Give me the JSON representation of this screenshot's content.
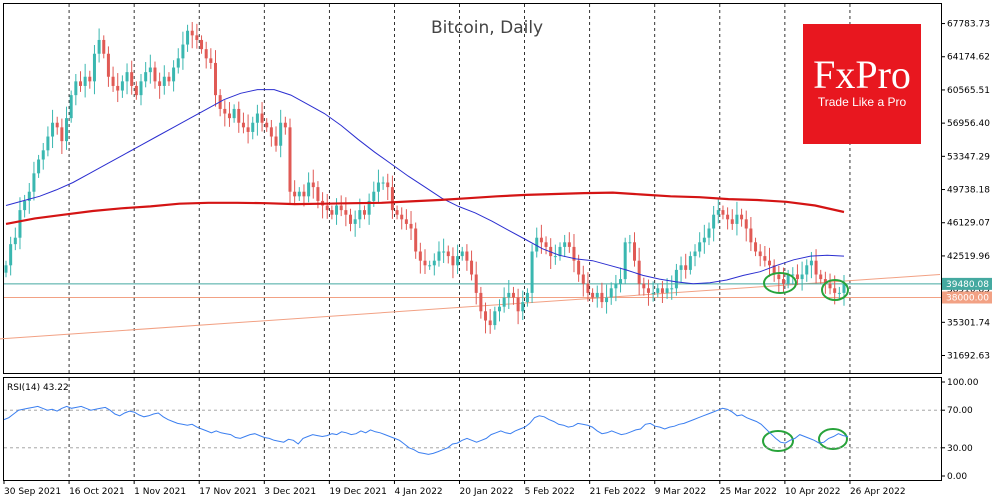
{
  "title": "Bitcoin, Daily",
  "logo": {
    "brand": "FxPro",
    "tagline": "Trade Like a Pro",
    "color": "#e8171f"
  },
  "colors": {
    "bull": "#3ab7b0",
    "bear": "#e05a55",
    "ma_fast": "#2b2ed0",
    "ma_slow": "#d41414",
    "trend": "#f2a184",
    "price_line": "#44a9a0",
    "rsi": "#3b7ff0",
    "ellipse": "#27a33a"
  },
  "chart_data": [
    {
      "type": "candlestick",
      "title": "Bitcoin, Daily",
      "y_ticks": [
        "67783.73",
        "64174.62",
        "60565.51",
        "56956.40",
        "53347.29",
        "49738.18",
        "46129.07",
        "42519.96",
        "38910.85",
        "35301.74",
        "31692.63"
      ],
      "ylim": [
        29900,
        69800
      ],
      "current_price_label": "39480.08",
      "current_price": 39480.08,
      "level_label": "38000.00",
      "level": 38000,
      "x_labels": [
        "30 Sep 2021",
        "16 Oct 2021",
        "1 Nov 2021",
        "17 Nov 2021",
        "3 Dec 2021",
        "19 Dec 2021",
        "4 Jan 2022",
        "20 Jan 2022",
        "5 Feb 2022",
        "21 Feb 2022",
        "9 Mar 2022",
        "25 Mar 2022",
        "10 Apr 2022",
        "26 Apr 2022"
      ],
      "closes": [
        41500,
        43800,
        44500,
        47500,
        48500,
        49500,
        51500,
        53000,
        54000,
        55500,
        57000,
        56500,
        55000,
        57500,
        60000,
        61500,
        61000,
        62000,
        61500,
        64500,
        66000,
        64500,
        62000,
        61000,
        60500,
        61500,
        62500,
        61000,
        60000,
        61500,
        62500,
        63000,
        61500,
        61000,
        62000,
        61500,
        63000,
        64000,
        65500,
        67000,
        66500,
        66000,
        65000,
        64000,
        63500,
        60000,
        58500,
        58000,
        57500,
        58500,
        57000,
        56500,
        56000,
        57000,
        58000,
        57000,
        56500,
        55500,
        54500,
        57000,
        56500,
        49500,
        49000,
        49500,
        49000,
        50500,
        50000,
        48500,
        48000,
        47500,
        47000,
        48000,
        47500,
        47000,
        46000,
        46500,
        47500,
        47000,
        48500,
        49500,
        50500,
        50500,
        50000,
        47500,
        47000,
        46500,
        46000,
        45500,
        43000,
        42000,
        41500,
        41500,
        42000,
        43000,
        43000,
        42500,
        41500,
        42500,
        43000,
        42000,
        40500,
        38500,
        36500,
        35500,
        35000,
        36500,
        37000,
        38000,
        38500,
        38000,
        36500,
        37500,
        38500,
        43000,
        44500,
        44000,
        43500,
        42500,
        42500,
        43500,
        44000,
        43500,
        42000,
        40500,
        39500,
        38500,
        38000,
        38500,
        37500,
        38000,
        39000,
        39500,
        40000,
        44000,
        44000,
        42000,
        39500,
        39000,
        38500,
        38500,
        39000,
        38500,
        39000,
        39000,
        41000,
        41500,
        41000,
        42500,
        43000,
        44000,
        44500,
        45500,
        47000,
        47500,
        47000,
        46500,
        46000,
        47000,
        46500,
        45500,
        44000,
        43000,
        42500,
        42000,
        41500,
        40500,
        40000,
        39500,
        40500,
        40500,
        40000,
        40500,
        41500,
        42000,
        40500,
        40000,
        39500,
        39000,
        38500,
        38500,
        39500
      ],
      "ma_fast": [
        48000,
        48500,
        49000,
        49700,
        50500,
        51500,
        52500,
        53500,
        54500,
        55500,
        56500,
        57500,
        58500,
        59500,
        60200,
        60600,
        60600,
        60000,
        59000,
        58000,
        56700,
        55200,
        53800,
        52500,
        51200,
        50000,
        48800,
        47900,
        47200,
        46300,
        45300,
        44300,
        43300,
        42600,
        42200,
        42000,
        41500,
        41000,
        40400,
        40000,
        39700,
        39500,
        39600,
        39900,
        40400,
        40800,
        41500,
        42100,
        42500,
        42600,
        42500
      ],
      "ma_slow": [
        46000,
        46600,
        47000,
        47400,
        47700,
        47900,
        48200,
        48300,
        48300,
        48250,
        48150,
        48200,
        48250,
        48300,
        48450,
        48600,
        48800,
        49000,
        49150,
        49250,
        49350,
        49400,
        49200,
        49000,
        48900,
        48700,
        48600,
        48400,
        48000,
        47300
      ],
      "trend": [
        [
          0,
          33500
        ],
        [
          940,
          40500
        ]
      ]
    },
    {
      "type": "line",
      "title": "RSI(14) 43.22",
      "y_ticks": [
        "100.00",
        "70.00",
        "30.00",
        "0.00"
      ],
      "ylim": [
        0,
        100
      ],
      "levels": [
        70,
        30
      ],
      "values": [
        60,
        62,
        66,
        70,
        71,
        72,
        73,
        74,
        72,
        70,
        71,
        69,
        72,
        74,
        72,
        73,
        74,
        72,
        70,
        71,
        72,
        73,
        70,
        66,
        64,
        67,
        69,
        68,
        65,
        63,
        64,
        66,
        67,
        63,
        60,
        58,
        56,
        55,
        54,
        55,
        52,
        50,
        48,
        46,
        48,
        46,
        45,
        44,
        41,
        40,
        42,
        44,
        45,
        43,
        41,
        40,
        38,
        37,
        36,
        39,
        38,
        34,
        40,
        42,
        44,
        43,
        42,
        43,
        45,
        44,
        47,
        46,
        44,
        45,
        48,
        46,
        49,
        47,
        46,
        44,
        42,
        40,
        38,
        34,
        30,
        28,
        25,
        24,
        23,
        24,
        26,
        28,
        30,
        34,
        35,
        38,
        40,
        38,
        36,
        38,
        40,
        44,
        46,
        48,
        46,
        45,
        48,
        50,
        52,
        56,
        62,
        64,
        63,
        60,
        58,
        55,
        54,
        52,
        53,
        56,
        55,
        54,
        52,
        48,
        45,
        46,
        48,
        46,
        44,
        45,
        47,
        49,
        50,
        55,
        56,
        53,
        52,
        50,
        52,
        53,
        55,
        56,
        58,
        60,
        62,
        64,
        66,
        68,
        70,
        72,
        71,
        68,
        64,
        65,
        62,
        60,
        58,
        55,
        50,
        45,
        40,
        36,
        35,
        38,
        40,
        44,
        42,
        40,
        38,
        35,
        36,
        40,
        42,
        45,
        43,
        42
      ],
      "start_x": 4,
      "end_x": 848
    }
  ]
}
